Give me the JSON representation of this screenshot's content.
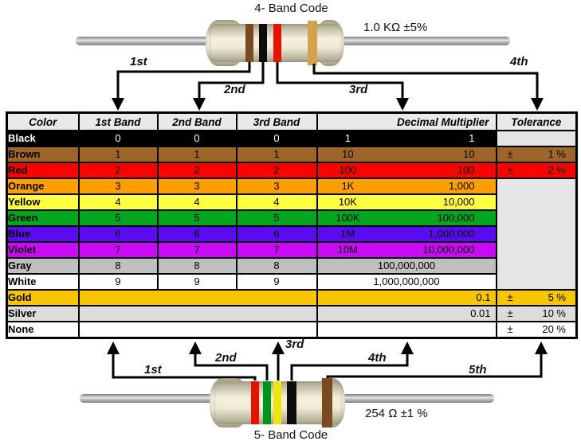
{
  "top_resistor": {
    "title": "4- Band Code",
    "value_label": "1.0 KΩ  ±5%",
    "arrow_labels": [
      "1st",
      "2nd",
      "3rd",
      "4th"
    ],
    "bands": [
      {
        "name": "brown",
        "hex": "#7c4a21"
      },
      {
        "name": "black",
        "hex": "#0d0d0d"
      },
      {
        "name": "red",
        "hex": "#e81000"
      },
      {
        "name": "gold",
        "hex": "#d2a24c"
      }
    ]
  },
  "bottom_resistor": {
    "title": "5- Band Code",
    "value_label": "254 Ω  ±1 %",
    "arrow_labels": [
      "1st",
      "2nd",
      "3rd",
      "4th",
      "5th"
    ],
    "bands": [
      {
        "name": "red",
        "hex": "#e81000"
      },
      {
        "name": "green",
        "hex": "#00931c"
      },
      {
        "name": "yellow",
        "hex": "#f0e40c"
      },
      {
        "name": "black",
        "hex": "#0d0d0d"
      },
      {
        "name": "brown",
        "hex": "#7c4a21"
      }
    ]
  },
  "table": {
    "headers": [
      "Color",
      "1st Band",
      "2nd Band",
      "3rd Band",
      "Decimal Multiplier",
      "Tolerance"
    ],
    "pm": "±",
    "rows": [
      {
        "name": "Black",
        "bg": "#000000",
        "fg": "#ffffff",
        "b1": "0",
        "b2": "0",
        "b3": "0",
        "mult_style": "two",
        "mult_short": "1",
        "mult_long": "1",
        "tol_cell": "empty"
      },
      {
        "name": "Brown",
        "bg": "#9d6528",
        "fg": "#000000",
        "b1": "1",
        "b2": "1",
        "b3": "1",
        "mult_style": "two",
        "mult_short": "10",
        "mult_long": "10",
        "tol_cell": "value",
        "tol": "1 %"
      },
      {
        "name": "Red",
        "bg": "#f50400",
        "fg": "#000000",
        "b1": "2",
        "b2": "2",
        "b3": "2",
        "mult_style": "two",
        "mult_short": "100",
        "mult_long": "100",
        "tol_cell": "value",
        "tol": "2 %"
      },
      {
        "name": "Orange",
        "bg": "#ff9e00",
        "fg": "#000000",
        "b1": "3",
        "b2": "3",
        "b3": "3",
        "mult_style": "two",
        "mult_short": "1K",
        "mult_long": "1,000",
        "tol_cell": "merge",
        "tol_rowspan": 7
      },
      {
        "name": "Yellow",
        "bg": "#ffff42",
        "fg": "#000000",
        "b1": "4",
        "b2": "4",
        "b3": "4",
        "mult_style": "two",
        "mult_short": "10K",
        "mult_long": "10,000",
        "tol_cell": "none"
      },
      {
        "name": "Green",
        "bg": "#00a61d",
        "fg": "#000000",
        "b1": "5",
        "b2": "5",
        "b3": "5",
        "mult_style": "two",
        "mult_short": "100K",
        "mult_long": "100,000",
        "tol_cell": "none"
      },
      {
        "name": "Blue",
        "bg": "#5a0bf2",
        "fg": "#000000",
        "b1": "6",
        "b2": "6",
        "b3": "6",
        "mult_style": "two",
        "mult_short": "1M",
        "mult_long": "1,000,000",
        "tol_cell": "none"
      },
      {
        "name": "Violet",
        "bg": "#c90bf5",
        "fg": "#000000",
        "b1": "7",
        "b2": "7",
        "b3": "7",
        "mult_style": "two",
        "mult_short": "10M",
        "mult_long": "10,000,000",
        "tol_cell": "none"
      },
      {
        "name": "Gray",
        "bg": "#bfbfbf",
        "fg": "#000000",
        "b1": "8",
        "b2": "8",
        "b3": "8",
        "mult_style": "center",
        "mult_long": "100,000,000",
        "tol_cell": "none"
      },
      {
        "name": "White",
        "bg": "#ffffff",
        "fg": "#000000",
        "b1": "9",
        "b2": "9",
        "b3": "9",
        "mult_style": "center",
        "mult_long": "1,000,000,000",
        "tol_cell": "none"
      },
      {
        "name": "Gold",
        "bg": "#f9c501",
        "fg": "#000000",
        "bands_merged": true,
        "mult_style": "edge",
        "mult_long": "0.1",
        "tol_cell": "value",
        "tol": "5 %"
      },
      {
        "name": "Silver",
        "bg": "#dcdcdc",
        "fg": "#000000",
        "bands_merged": true,
        "mult_style": "edge",
        "mult_long": "0.01",
        "tol_cell": "value",
        "tol": "10 %"
      },
      {
        "name": "None",
        "bg": "#ffffff",
        "fg": "#000000",
        "bands_merged": true,
        "mult_style": "none",
        "tol_cell": "value",
        "tol": "20 %"
      }
    ]
  },
  "colors": {
    "table_border": "#000000",
    "header_bg": "#e9e9e9",
    "empty_tolerance_bg": "#e5e5e5",
    "resistor_body": "#efebd8",
    "lead_gray": "#bdbdbd",
    "arrow_black": "#000000"
  }
}
